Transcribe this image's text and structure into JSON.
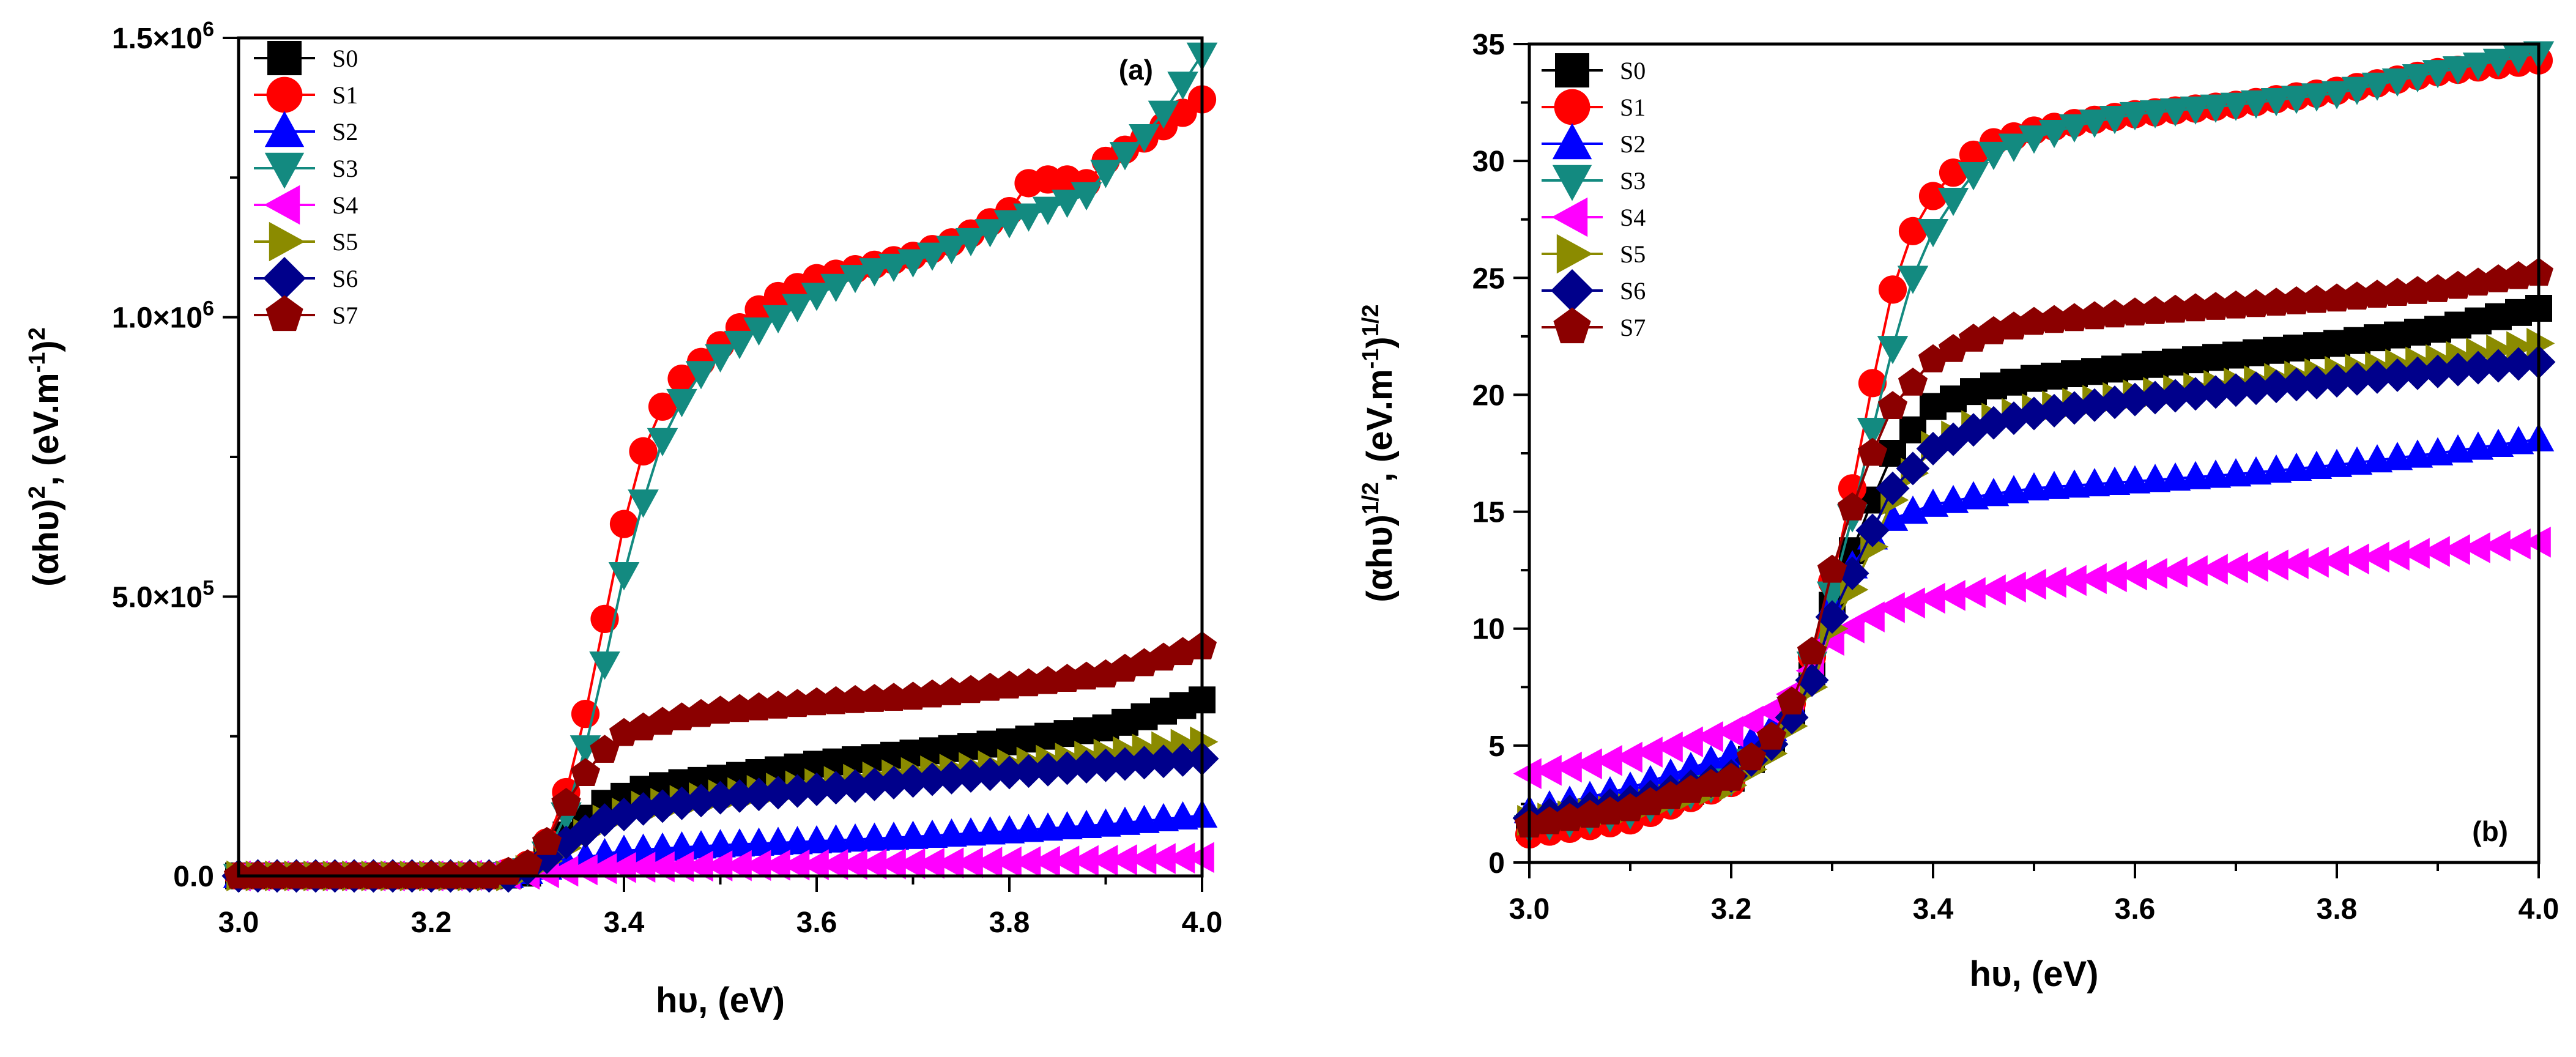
{
  "chart_data": [
    {
      "type": "line",
      "panel_label": "(a)",
      "xlabel": "hυ, (eV)",
      "ylabel_prefix": "(αhυ)",
      "ylabel_exp1": "2",
      "ylabel_mid": ", (eV.m",
      "ylabel_exp2": "-1",
      "ylabel_close": ")",
      "ylabel_exp3": "2",
      "xlim": [
        3.0,
        4.0
      ],
      "ylim": [
        0,
        1500000
      ],
      "xticks": [
        3.0,
        3.2,
        3.4,
        3.6,
        3.8,
        4.0
      ],
      "xtick_labels": [
        "3.0",
        "3.2",
        "3.4",
        "3.6",
        "3.8",
        "4.0"
      ],
      "yticks": [
        0,
        500000,
        1000000,
        1500000
      ],
      "ytick_labels": [
        {
          "mant": "0.0",
          "exp": ""
        },
        {
          "mant": "5.0×10",
          "exp": "5"
        },
        {
          "mant": "1.0×10",
          "exp": "6"
        },
        {
          "mant": "1.5×10",
          "exp": "6"
        }
      ],
      "legend_position": "top-left",
      "series": [
        {
          "name": "S0",
          "marker": "square",
          "color": "#000000",
          "x": [
            3.0,
            3.2,
            3.27,
            3.3,
            3.32,
            3.35,
            3.38,
            3.42,
            3.45,
            3.5,
            3.6,
            3.7,
            3.8,
            3.9,
            4.0
          ],
          "y": [
            0,
            0,
            0,
            5000,
            40000,
            90000,
            130000,
            155000,
            165000,
            175000,
            200000,
            220000,
            240000,
            265000,
            315000
          ]
        },
        {
          "name": "S1",
          "marker": "circle",
          "color": "#ff0000",
          "x": [
            3.0,
            3.2,
            3.27,
            3.3,
            3.32,
            3.34,
            3.36,
            3.38,
            3.4,
            3.42,
            3.44,
            3.46,
            3.48,
            3.5,
            3.55,
            3.6,
            3.65,
            3.7,
            3.75,
            3.8,
            3.82,
            3.85,
            3.88,
            3.9,
            3.95,
            4.0
          ],
          "y": [
            0,
            0,
            0,
            20000,
            60000,
            150000,
            290000,
            460000,
            630000,
            760000,
            840000,
            890000,
            920000,
            950000,
            1030000,
            1070000,
            1090000,
            1110000,
            1140000,
            1190000,
            1240000,
            1250000,
            1240000,
            1280000,
            1330000,
            1390000
          ]
        },
        {
          "name": "S2",
          "marker": "triangle-up",
          "color": "#0000ff",
          "x": [
            3.0,
            3.2,
            3.28,
            3.32,
            3.35,
            3.4,
            3.5,
            3.6,
            3.7,
            3.8,
            3.9,
            4.0
          ],
          "y": [
            0,
            0,
            0,
            15000,
            30000,
            45000,
            55000,
            62000,
            70000,
            80000,
            92000,
            108000
          ]
        },
        {
          "name": "S3",
          "marker": "triangle-down",
          "color": "#138a80",
          "x": [
            3.0,
            3.2,
            3.27,
            3.3,
            3.32,
            3.34,
            3.36,
            3.38,
            3.4,
            3.42,
            3.44,
            3.46,
            3.48,
            3.5,
            3.55,
            3.6,
            3.65,
            3.7,
            3.75,
            3.8,
            3.85,
            3.88,
            3.9,
            3.95,
            4.0
          ],
          "y": [
            0,
            0,
            0,
            10000,
            40000,
            110000,
            230000,
            380000,
            540000,
            670000,
            780000,
            850000,
            900000,
            930000,
            990000,
            1040000,
            1080000,
            1100000,
            1130000,
            1170000,
            1200000,
            1220000,
            1260000,
            1340000,
            1470000
          ]
        },
        {
          "name": "S4",
          "marker": "triangle-left",
          "color": "#ff00ff",
          "x": [
            3.0,
            3.2,
            3.3,
            3.35,
            3.4,
            3.5,
            3.6,
            3.7,
            3.8,
            3.9,
            4.0
          ],
          "y": [
            0,
            0,
            3000,
            10000,
            15000,
            18000,
            20000,
            22000,
            25000,
            28000,
            33000
          ]
        },
        {
          "name": "S5",
          "marker": "triangle-right",
          "color": "#8b8b00",
          "x": [
            3.0,
            3.2,
            3.28,
            3.31,
            3.34,
            3.38,
            3.42,
            3.5,
            3.6,
            3.7,
            3.8,
            3.9,
            4.0
          ],
          "y": [
            0,
            0,
            0,
            15000,
            50000,
            100000,
            125000,
            145000,
            165000,
            185000,
            200000,
            218000,
            240000
          ]
        },
        {
          "name": "S6",
          "marker": "diamond",
          "color": "#00008b",
          "x": [
            3.0,
            3.2,
            3.28,
            3.31,
            3.34,
            3.38,
            3.42,
            3.5,
            3.6,
            3.7,
            3.8,
            3.9,
            4.0
          ],
          "y": [
            0,
            0,
            0,
            20000,
            60000,
            100000,
            120000,
            140000,
            155000,
            170000,
            185000,
            198000,
            210000
          ]
        },
        {
          "name": "S7",
          "marker": "pentagon",
          "color": "#8b0000",
          "x": [
            3.0,
            3.2,
            3.27,
            3.3,
            3.32,
            3.34,
            3.37,
            3.4,
            3.45,
            3.5,
            3.6,
            3.7,
            3.8,
            3.9,
            4.0
          ],
          "y": [
            0,
            0,
            0,
            20000,
            60000,
            130000,
            210000,
            255000,
            280000,
            295000,
            310000,
            320000,
            340000,
            360000,
            410000
          ]
        }
      ]
    },
    {
      "type": "line",
      "panel_label": "(b)",
      "xlabel": "hυ, (eV)",
      "ylabel_prefix": "(αhυ)",
      "ylabel_exp1": "1/2",
      "ylabel_mid": ", (eV.m",
      "ylabel_exp2": "-1",
      "ylabel_close": ")",
      "ylabel_exp3": "1/2",
      "xlim": [
        3.0,
        4.0
      ],
      "ylim": [
        0,
        35
      ],
      "xticks": [
        3.0,
        3.2,
        3.4,
        3.6,
        3.8,
        4.0
      ],
      "xtick_labels": [
        "3.0",
        "3.2",
        "3.4",
        "3.6",
        "3.8",
        "4.0"
      ],
      "yticks": [
        0,
        5,
        10,
        15,
        20,
        25,
        30,
        35
      ],
      "ytick_labels": [
        {
          "mant": "0",
          "exp": ""
        },
        {
          "mant": "5",
          "exp": ""
        },
        {
          "mant": "10",
          "exp": ""
        },
        {
          "mant": "15",
          "exp": ""
        },
        {
          "mant": "20",
          "exp": ""
        },
        {
          "mant": "25",
          "exp": ""
        },
        {
          "mant": "30",
          "exp": ""
        },
        {
          "mant": "35",
          "exp": ""
        }
      ],
      "legend_position": "top-left",
      "series": [
        {
          "name": "S0",
          "marker": "square",
          "color": "#000000",
          "x": [
            3.0,
            3.1,
            3.2,
            3.25,
            3.28,
            3.3,
            3.33,
            3.36,
            3.4,
            3.45,
            3.5,
            3.6,
            3.7,
            3.8,
            3.9,
            4.0
          ],
          "y": [
            1.5,
            2.2,
            3.6,
            5.6,
            8.0,
            11.0,
            14.5,
            17.5,
            19.5,
            20.3,
            20.7,
            21.2,
            21.7,
            22.2,
            22.8,
            23.7
          ]
        },
        {
          "name": "S1",
          "marker": "circle",
          "color": "#ff0000",
          "x": [
            3.0,
            3.1,
            3.2,
            3.25,
            3.28,
            3.3,
            3.32,
            3.34,
            3.36,
            3.38,
            3.4,
            3.43,
            3.46,
            3.5,
            3.55,
            3.6,
            3.7,
            3.8,
            3.9,
            4.0
          ],
          "y": [
            1.2,
            1.8,
            3.4,
            5.8,
            8.8,
            12.0,
            16.0,
            20.5,
            24.5,
            27.0,
            28.5,
            30.0,
            30.8,
            31.3,
            31.7,
            32.0,
            32.4,
            33.0,
            33.8,
            34.3
          ]
        },
        {
          "name": "S2",
          "marker": "triangle-up",
          "color": "#0000ff",
          "x": [
            3.0,
            3.1,
            3.2,
            3.25,
            3.28,
            3.3,
            3.33,
            3.36,
            3.4,
            3.45,
            3.5,
            3.6,
            3.7,
            3.8,
            3.9,
            4.0
          ],
          "y": [
            2.2,
            3.2,
            4.6,
            6.0,
            8.2,
            11.0,
            13.5,
            14.7,
            15.3,
            15.7,
            16.0,
            16.3,
            16.6,
            17.0,
            17.5,
            18.1
          ]
        },
        {
          "name": "S3",
          "marker": "triangle-down",
          "color": "#138a80",
          "x": [
            3.0,
            3.1,
            3.2,
            3.25,
            3.28,
            3.3,
            3.32,
            3.34,
            3.36,
            3.38,
            3.4,
            3.43,
            3.46,
            3.5,
            3.55,
            3.6,
            3.7,
            3.8,
            3.9,
            4.0
          ],
          "y": [
            1.5,
            2.1,
            3.5,
            5.6,
            8.5,
            11.5,
            14.8,
            18.5,
            22.0,
            25.0,
            27.0,
            29.0,
            30.3,
            31.0,
            31.6,
            32.0,
            32.4,
            32.9,
            33.8,
            34.6
          ]
        },
        {
          "name": "S4",
          "marker": "triangle-left",
          "color": "#ff00ff",
          "x": [
            3.0,
            3.1,
            3.2,
            3.25,
            3.28,
            3.3,
            3.33,
            3.36,
            3.4,
            3.45,
            3.5,
            3.6,
            3.7,
            3.8,
            3.9,
            4.0
          ],
          "y": [
            3.8,
            4.5,
            5.6,
            6.7,
            8.2,
            9.5,
            10.3,
            10.9,
            11.3,
            11.6,
            11.9,
            12.3,
            12.6,
            12.9,
            13.3,
            13.7
          ]
        },
        {
          "name": "S5",
          "marker": "triangle-right",
          "color": "#8b8b00",
          "x": [
            3.0,
            3.1,
            3.2,
            3.25,
            3.28,
            3.3,
            3.33,
            3.36,
            3.4,
            3.45,
            3.5,
            3.6,
            3.7,
            3.8,
            3.9,
            4.0
          ],
          "y": [
            1.8,
            2.3,
            3.3,
            5.0,
            7.5,
            10.0,
            12.5,
            15.5,
            17.8,
            18.9,
            19.4,
            20.0,
            20.5,
            21.0,
            21.5,
            22.2
          ]
        },
        {
          "name": "S6",
          "marker": "diamond",
          "color": "#00008b",
          "x": [
            3.0,
            3.1,
            3.2,
            3.25,
            3.28,
            3.3,
            3.33,
            3.36,
            3.4,
            3.45,
            3.5,
            3.6,
            3.7,
            3.8,
            3.9,
            4.0
          ],
          "y": [
            1.9,
            2.6,
            3.7,
            5.4,
            7.8,
            10.5,
            13.3,
            16.0,
            17.7,
            18.7,
            19.2,
            19.8,
            20.2,
            20.6,
            21.0,
            21.4
          ]
        },
        {
          "name": "S7",
          "marker": "pentagon",
          "color": "#8b0000",
          "x": [
            3.0,
            3.1,
            3.2,
            3.25,
            3.28,
            3.3,
            3.33,
            3.36,
            3.4,
            3.45,
            3.5,
            3.6,
            3.7,
            3.8,
            3.9,
            4.0
          ],
          "y": [
            1.6,
            2.3,
            3.6,
            5.8,
            9.0,
            12.5,
            16.5,
            19.5,
            21.5,
            22.6,
            23.1,
            23.5,
            23.8,
            24.1,
            24.5,
            25.2
          ]
        }
      ]
    }
  ]
}
